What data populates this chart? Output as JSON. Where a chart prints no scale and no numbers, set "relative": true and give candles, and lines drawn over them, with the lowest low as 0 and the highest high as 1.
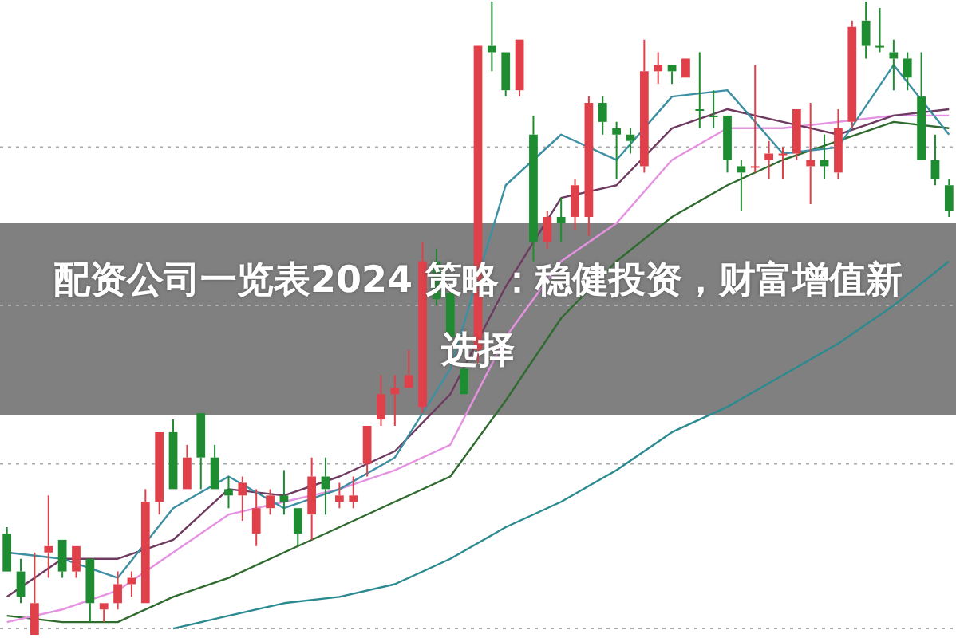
{
  "chart_data": {
    "type": "candlestick",
    "title": "配资公司一览表2024 策略：稳健投资，财富增值新选择",
    "relative": true,
    "categories": [
      null,
      null,
      null,
      null,
      null,
      null,
      null,
      null,
      null,
      null,
      null,
      null,
      null,
      null,
      null,
      null,
      null,
      null,
      null,
      null,
      null,
      null,
      null,
      null,
      null,
      null,
      null,
      null,
      null,
      null,
      null,
      null,
      null,
      null,
      null,
      null,
      null,
      null,
      null,
      null,
      null,
      null,
      null,
      null,
      null,
      null,
      null,
      null,
      null,
      null,
      null,
      null,
      null,
      null,
      null,
      null,
      null,
      null,
      null,
      null,
      null,
      null,
      null,
      null,
      null,
      null,
      null,
      null,
      null
    ],
    "colors": [
      "#1e8c30",
      "#1e8c30",
      "#e0404a",
      "#e0404a",
      "#1e8c30",
      "#e0404a",
      "#1e8c30",
      "#e0404a",
      "#e0404a",
      "#e0404a",
      "#e0404a",
      "#e0404a",
      "#1e8c30",
      "#e0404a",
      "#1e8c30",
      "#1e8c30",
      "#1e8c30",
      "#e0404a",
      "#e0404a",
      "#e0404a",
      "#1e8c30",
      "#1e8c30",
      "#e0404a",
      "#1e8c30",
      "#e0404a",
      "#e0404a",
      "#e0404a",
      "#e0404a",
      "#e0404a",
      "#e0404a",
      "#e0404a",
      "#1e8c30",
      "#1e8c30",
      "#1e8c30",
      "#e0404a",
      "#1e8c30",
      "#1e8c30",
      "#e0404a",
      "#1e8c30",
      "#e0404a",
      "#1e8c30",
      "#e0404a",
      "#e0404a",
      "#1e8c30",
      "#1e8c30",
      "#1e8c30",
      "#e0404a",
      "#e0404a",
      "#1e8c30",
      "#e0404a",
      "#1e8c30",
      "#1e8c30",
      "#1e8c30",
      "#1e8c30",
      "#e0404a",
      "#e0404a",
      "#e0404a",
      "#e0404a",
      "#e0404a",
      "#1e8c30",
      "#e0404a",
      "#e0404a",
      "#1e8c30",
      "#1e8c30",
      "#1e8c30",
      "#1e8c30",
      "#1e8c30",
      "#1e8c30",
      "#1e8c30"
    ],
    "ohlc": [
      [
        0.16,
        0.17,
        0.1,
        0.1
      ],
      [
        0.1,
        0.12,
        0.05,
        0.06
      ],
      [
        0,
        0.13,
        0,
        0.05
      ],
      [
        0.13,
        0.22,
        0.09,
        0.14
      ],
      [
        0.15,
        0.15,
        0.09,
        0.1
      ],
      [
        0.1,
        0.14,
        0.09,
        0.14
      ],
      [
        0.12,
        0.12,
        0.02,
        0.05
      ],
      [
        0.04,
        0.05,
        0.02,
        0.05
      ],
      [
        0.05,
        0.1,
        0.04,
        0.08
      ],
      [
        0.08,
        0.1,
        0.06,
        0.09
      ],
      [
        0.05,
        0.23,
        0.05,
        0.21
      ],
      [
        0.21,
        0.32,
        0.19,
        0.32
      ],
      [
        0.32,
        0.34,
        0.23,
        0.23
      ],
      [
        0.23,
        0.3,
        0.23,
        0.28
      ],
      [
        0.35,
        0.35,
        0.23,
        0.28
      ],
      [
        0.28,
        0.3,
        0.23,
        0.23
      ],
      [
        0.23,
        0.25,
        0.2,
        0.22
      ],
      [
        0.22,
        0.25,
        0.18,
        0.24
      ],
      [
        0.16,
        0.23,
        0.14,
        0.2
      ],
      [
        0.2,
        0.23,
        0.19,
        0.22
      ],
      [
        0.22,
        0.26,
        0.19,
        0.21
      ],
      [
        0.2,
        0.2,
        0.14,
        0.16
      ],
      [
        0.19,
        0.28,
        0.15,
        0.25
      ],
      [
        0.25,
        0.28,
        0.19,
        0.23
      ],
      [
        0.21,
        0.24,
        0.2,
        0.22
      ],
      [
        0.21,
        0.25,
        0.2,
        0.22
      ],
      [
        0.27,
        0.33,
        0.25,
        0.33
      ],
      [
        0.34,
        0.41,
        0.33,
        0.38
      ],
      [
        0.38,
        0.41,
        0.33,
        0.39
      ],
      [
        0.39,
        0.45,
        0.39,
        0.41
      ],
      [
        0.36,
        0.62,
        0.35,
        0.59
      ],
      [
        0.59,
        0.61,
        0.52,
        0.53
      ],
      [
        0.54,
        0.55,
        0.47,
        0.47
      ],
      [
        0.42,
        0.43,
        0.38,
        0.38
      ],
      [
        0.45,
        0.93,
        0.43,
        0.93
      ],
      [
        0.93,
        1,
        0.89,
        0.92
      ],
      [
        0.92,
        0.92,
        0.85,
        0.86
      ],
      [
        0.86,
        0.94,
        0.85,
        0.94
      ],
      [
        0.79,
        0.82,
        0.59,
        0.62
      ],
      [
        0.62,
        0.67,
        0.61,
        0.66
      ],
      [
        0.66,
        0.69,
        0.62,
        0.65
      ],
      [
        0.66,
        0.72,
        0.64,
        0.71
      ],
      [
        0.66,
        0.85,
        0.63,
        0.84
      ],
      [
        0.84,
        0.85,
        0.79,
        0.81
      ],
      [
        0.8,
        0.81,
        0.72,
        0.79
      ],
      [
        0.79,
        0.8,
        0.76,
        0.78
      ],
      [
        0.74,
        0.94,
        0.73,
        0.89
      ],
      [
        0.89,
        0.92,
        0.87,
        0.9
      ],
      [
        0.9,
        0.9,
        0.87,
        0.89
      ],
      [
        0.88,
        0.91,
        0.88,
        0.91
      ],
      [
        0.83,
        0.92,
        0.8,
        0.83
      ],
      [
        0.82,
        0.86,
        0.8,
        0.82
      ],
      [
        0.82,
        0.82,
        0.73,
        0.75
      ],
      [
        0.74,
        0.75,
        0.67,
        0.73
      ],
      [
        0.74,
        0.9,
        0.73,
        0.74
      ],
      [
        0.75,
        0.78,
        0.72,
        0.76
      ],
      [
        0.76,
        0.77,
        0.72,
        0.76
      ],
      [
        0.76,
        0.83,
        0.75,
        0.83
      ],
      [
        0.74,
        0.84,
        0.68,
        0.75
      ],
      [
        0.75,
        0.79,
        0.72,
        0.74
      ],
      [
        0.73,
        0.83,
        0.72,
        0.8
      ],
      [
        0.81,
        0.97,
        0.8,
        0.96
      ],
      [
        0.97,
        1,
        0.91,
        0.93
      ],
      [
        0.93,
        0.99,
        0.92,
        0.93
      ],
      [
        0.92,
        0.94,
        0.86,
        0.91
      ],
      [
        0.91,
        0.92,
        0.86,
        0.88
      ],
      [
        0.85,
        0.92,
        0.75,
        0.75
      ],
      [
        0.75,
        0.79,
        0.71,
        0.72
      ],
      [
        0.71,
        0.72,
        0.66,
        0.67
      ]
    ],
    "series": [
      {
        "type": "line",
        "color": "#3d8fa3",
        "values": [
          0.13,
          null,
          null,
          null,
          0.12,
          null,
          null,
          null,
          0.09,
          null,
          null,
          null,
          0.2,
          null,
          null,
          null,
          0.25,
          null,
          null,
          null,
          0.2,
          null,
          null,
          null,
          0.23,
          null,
          null,
          null,
          0.28,
          null,
          null,
          null,
          0.42,
          null,
          null,
          null,
          0.71,
          null,
          null,
          null,
          0.79,
          null,
          null,
          null,
          0.75,
          null,
          null,
          null,
          0.85,
          null,
          null,
          null,
          0.86,
          null,
          null,
          null,
          0.76,
          null,
          null,
          null,
          0.77,
          null,
          null,
          null,
          0.9,
          null,
          null,
          null,
          0.79
        ]
      },
      {
        "type": "line",
        "color": "#6e3a60",
        "values": [
          0.06,
          null,
          null,
          null,
          0.12,
          null,
          null,
          null,
          0.12,
          null,
          null,
          null,
          0.15,
          null,
          null,
          null,
          0.23,
          null,
          null,
          null,
          0.22,
          null,
          null,
          null,
          0.25,
          null,
          null,
          null,
          0.29,
          null,
          null,
          null,
          0.38,
          null,
          null,
          null,
          0.55,
          null,
          null,
          null,
          0.69,
          null,
          null,
          null,
          0.71,
          null,
          null,
          null,
          0.8,
          null,
          null,
          null,
          0.83,
          null,
          null,
          null,
          0.81,
          null,
          null,
          null,
          0.79,
          null,
          null,
          null,
          0.82,
          null,
          null,
          null,
          0.83
        ]
      },
      {
        "type": "line",
        "color": "#e592e2",
        "values": [
          0.02,
          null,
          null,
          null,
          0.04,
          null,
          null,
          null,
          0.07,
          null,
          null,
          null,
          0.13,
          null,
          null,
          null,
          0.19,
          null,
          null,
          null,
          0.21,
          null,
          null,
          null,
          0.23,
          null,
          null,
          null,
          0.26,
          null,
          null,
          null,
          0.3,
          null,
          null,
          null,
          0.47,
          null,
          null,
          null,
          0.59,
          null,
          null,
          null,
          0.65,
          null,
          null,
          null,
          0.75,
          null,
          null,
          null,
          0.8,
          null,
          null,
          null,
          0.8,
          null,
          null,
          null,
          null,
          null,
          null,
          null,
          0.82,
          null,
          null,
          null,
          0.82
        ]
      },
      {
        "type": "line",
        "color": "#2f6b2f",
        "values": [
          0.03,
          null,
          null,
          null,
          0.02,
          null,
          null,
          null,
          0.02,
          null,
          null,
          null,
          0.06,
          null,
          null,
          null,
          0.09,
          null,
          null,
          null,
          0.13,
          null,
          null,
          null,
          0.17,
          null,
          null,
          null,
          0.21,
          null,
          null,
          null,
          0.25,
          null,
          null,
          null,
          0.37,
          null,
          null,
          null,
          0.5,
          null,
          null,
          null,
          0.59,
          null,
          null,
          null,
          0.66,
          null,
          null,
          null,
          0.71,
          null,
          null,
          null,
          0.75,
          null,
          null,
          null,
          0.78,
          null,
          null,
          null,
          0.81,
          null,
          null,
          null,
          0.8
        ]
      },
      {
        "type": "line",
        "color": "#2a8a8f",
        "values": [
          null,
          null,
          null,
          null,
          null,
          null,
          null,
          null,
          null,
          null,
          null,
          null,
          0.01,
          null,
          null,
          null,
          0.03,
          null,
          null,
          null,
          0.05,
          null,
          null,
          null,
          0.06,
          null,
          null,
          null,
          0.08,
          null,
          null,
          null,
          0.12,
          null,
          null,
          null,
          0.17,
          null,
          null,
          null,
          0.21,
          null,
          null,
          null,
          0.26,
          null,
          null,
          null,
          0.32,
          null,
          null,
          null,
          0.36,
          null,
          null,
          null,
          0.41,
          null,
          null,
          null,
          0.46,
          null,
          null,
          null,
          0.52,
          null,
          null,
          null,
          0.59
        ]
      }
    ],
    "ref_lines": [
      {
        "axis": "y",
        "value": 0.77,
        "color": "#aaaaaa",
        "line_style": "dotted"
      },
      {
        "axis": "y",
        "value": 0.52,
        "color": "#aaaaaa",
        "line_style": "dotted"
      },
      {
        "axis": "y",
        "value": 0.27,
        "color": "#aaaaaa",
        "line_style": "dotted"
      },
      {
        "axis": "y",
        "value": 0.01,
        "color": "#aaaaaa",
        "line_style": "dotted"
      }
    ],
    "legend": false
  }
}
